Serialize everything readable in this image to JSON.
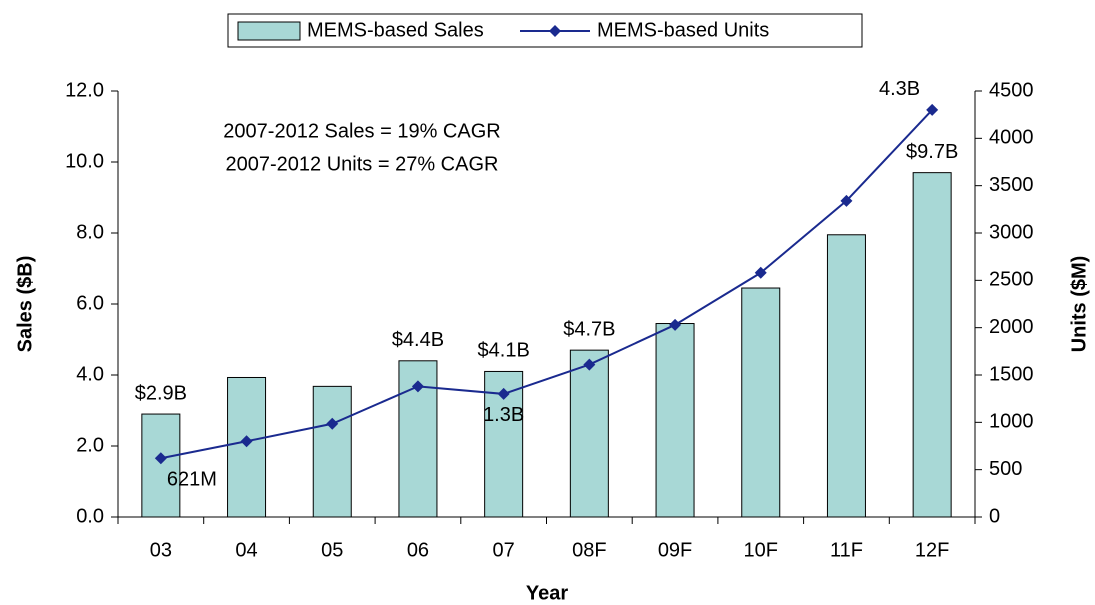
{
  "chart_data": {
    "type": "bar_line",
    "legend": "top",
    "x_label": "Year",
    "y_label": "Sales ($B)",
    "y2_label": "Units ($M)",
    "annotations": [
      "2007-2012 Sales = 19% CAGR",
      "2007-2012 Units = 27% CAGR"
    ],
    "categories": [
      "03",
      "04",
      "05",
      "06",
      "07",
      "08F",
      "09F",
      "10F",
      "11F",
      "12F"
    ],
    "series": [
      {
        "name": "MEMS-based Sales",
        "type": "bar",
        "color": "#a8d8d6",
        "values": [
          2.9,
          3.93,
          3.68,
          4.4,
          4.1,
          4.7,
          5.45,
          6.45,
          7.95,
          9.7
        ],
        "value_labels": [
          "$2.9B",
          null,
          null,
          "$4.4B",
          "$4.1B",
          "$4.7B",
          null,
          null,
          null,
          "$9.7B"
        ]
      },
      {
        "name": "MEMS-based Units",
        "type": "line",
        "axis": "y2",
        "color": "#1a2a8f",
        "values": [
          621,
          800,
          985,
          1380,
          1300,
          1610,
          2030,
          2580,
          3340,
          4300
        ],
        "value_labels": [
          "621M",
          null,
          null,
          null,
          "1.3B",
          null,
          null,
          null,
          null,
          "4.3B"
        ]
      }
    ],
    "ylim": [
      0,
      12
    ],
    "yticks": [
      {
        "value": 0,
        "label": "0.0"
      },
      {
        "value": 2,
        "label": "2.0"
      },
      {
        "value": 4,
        "label": "4.0"
      },
      {
        "value": 6,
        "label": "6.0"
      },
      {
        "value": 8,
        "label": "8.0"
      },
      {
        "value": 10,
        "label": "10.0"
      },
      {
        "value": 12,
        "label": "12.0"
      }
    ],
    "y2lim": [
      0,
      4500
    ],
    "y2ticks": [
      0,
      500,
      1000,
      1500,
      2000,
      2500,
      3000,
      3500,
      4000,
      4500
    ]
  }
}
